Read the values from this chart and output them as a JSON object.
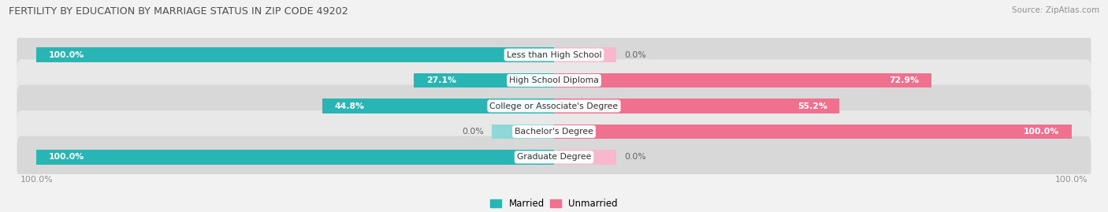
{
  "title": "FERTILITY BY EDUCATION BY MARRIAGE STATUS IN ZIP CODE 49202",
  "source": "Source: ZipAtlas.com",
  "categories": [
    "Less than High School",
    "High School Diploma",
    "College or Associate's Degree",
    "Bachelor's Degree",
    "Graduate Degree"
  ],
  "married": [
    100.0,
    27.1,
    44.8,
    0.0,
    100.0
  ],
  "unmarried": [
    0.0,
    72.9,
    55.2,
    100.0,
    0.0
  ],
  "married_color": "#2ab5b5",
  "unmarried_color": "#f07090",
  "married_light": "#90d8d8",
  "unmarried_light": "#f8b8cc",
  "row_bg_colors": [
    "#d8d8d8",
    "#e8e8e8",
    "#d8d8d8",
    "#e8e8e8",
    "#d8d8d8"
  ],
  "title_color": "#505050",
  "label_color": "#606060",
  "axis_label_color": "#909090",
  "figure_bg": "#f2f2f2",
  "figwidth": 14.06,
  "figheight": 2.69
}
